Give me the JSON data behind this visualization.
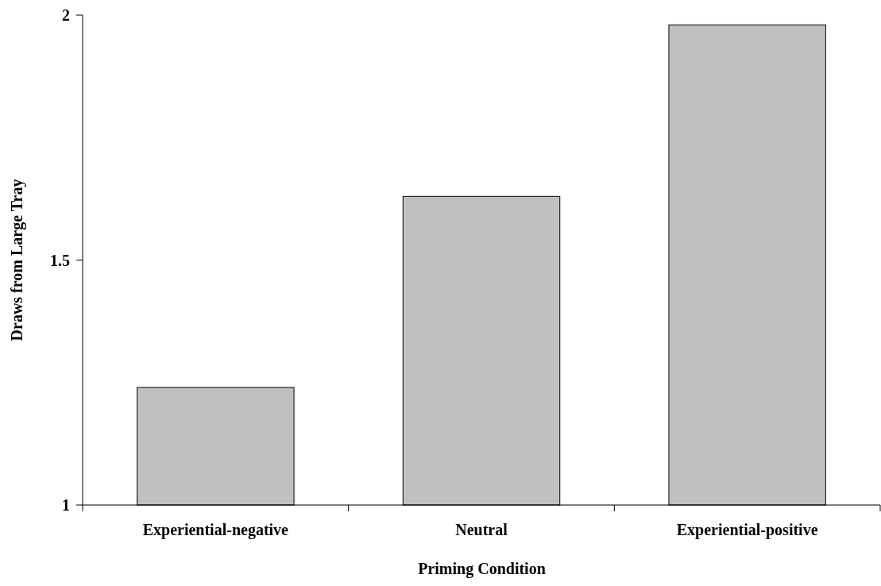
{
  "chart_data": {
    "type": "bar",
    "xlabel": "Priming Condition",
    "ylabel": "Draws from Large Tray",
    "categories": [
      "Experiential-negative",
      "Neutral",
      "Experiential-positive"
    ],
    "values": [
      1.24,
      1.63,
      1.98
    ],
    "color": "#c0c0c0",
    "ylim": [
      1,
      2
    ],
    "yticks": [
      1,
      1.5,
      2
    ]
  }
}
